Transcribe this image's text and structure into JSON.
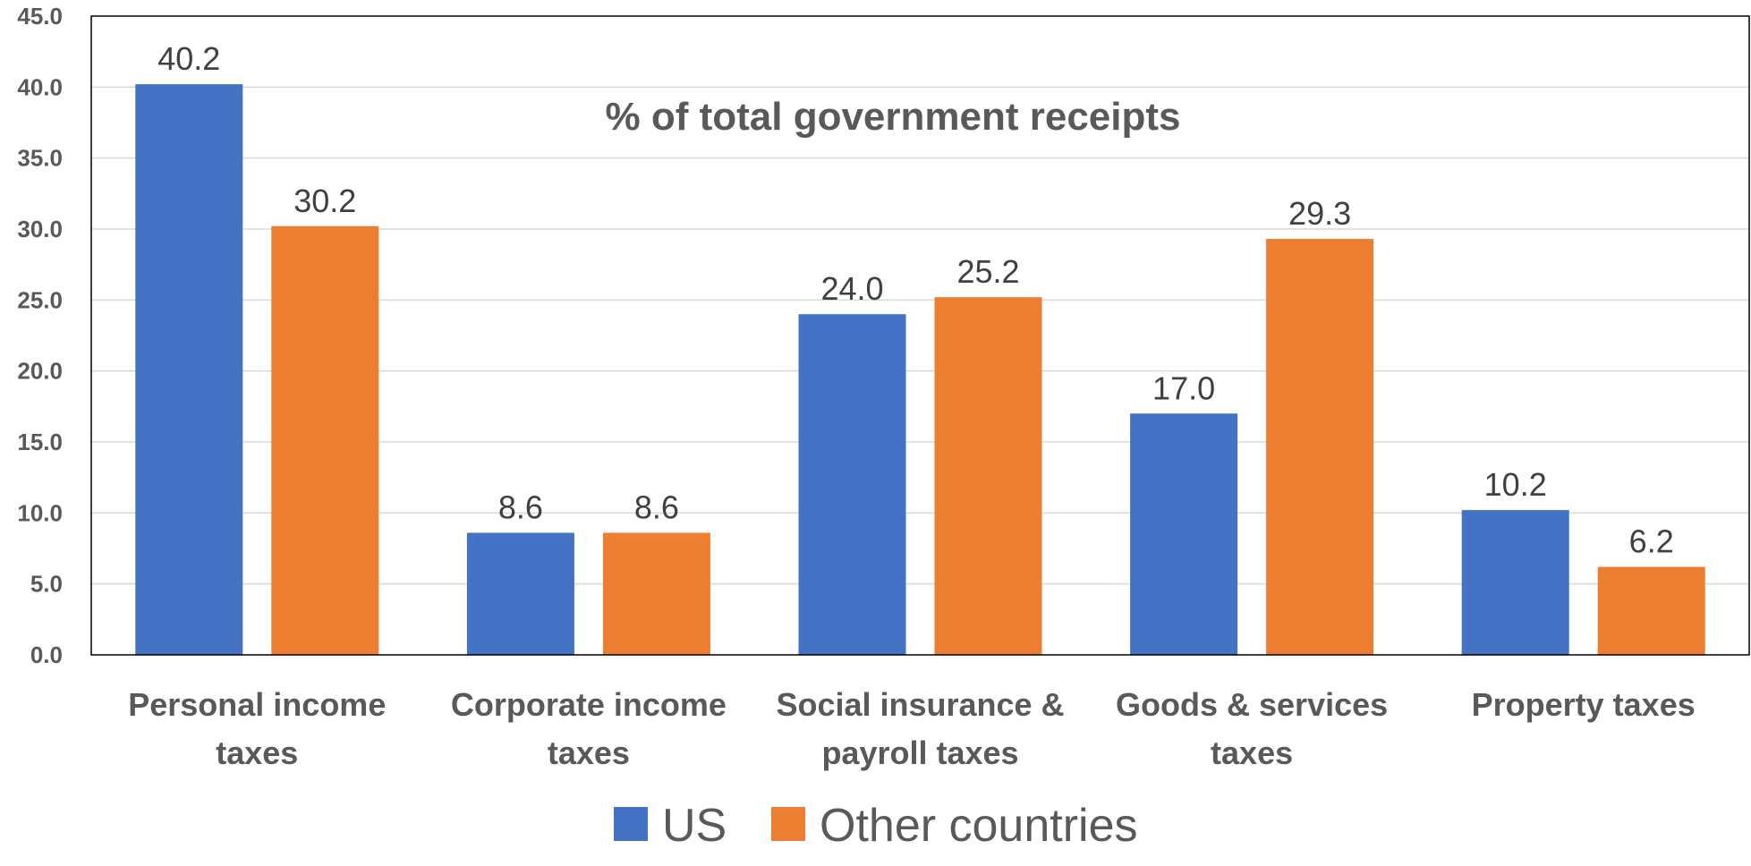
{
  "chart_data": {
    "type": "bar",
    "title": "% of total government receipts",
    "categories": [
      [
        "Personal income",
        "taxes"
      ],
      [
        "Corporate income",
        "taxes"
      ],
      [
        "Social insurance &",
        "payroll taxes"
      ],
      [
        "Goods & services",
        "taxes"
      ],
      [
        "Property taxes"
      ]
    ],
    "series": [
      {
        "name": "US",
        "color": "#4472C4",
        "values": [
          40.2,
          8.6,
          24.0,
          17.0,
          10.2
        ]
      },
      {
        "name": "Other countries",
        "color": "#ED7D31",
        "values": [
          30.2,
          8.6,
          25.2,
          29.3,
          6.2
        ]
      }
    ],
    "ylim": [
      0,
      45
    ],
    "yticks": [
      "0.0",
      "5.0",
      "10.0",
      "15.0",
      "20.0",
      "25.0",
      "30.0",
      "35.0",
      "40.0",
      "45.0"
    ],
    "grid": true,
    "legend_position": "bottom",
    "value_labels": true
  }
}
